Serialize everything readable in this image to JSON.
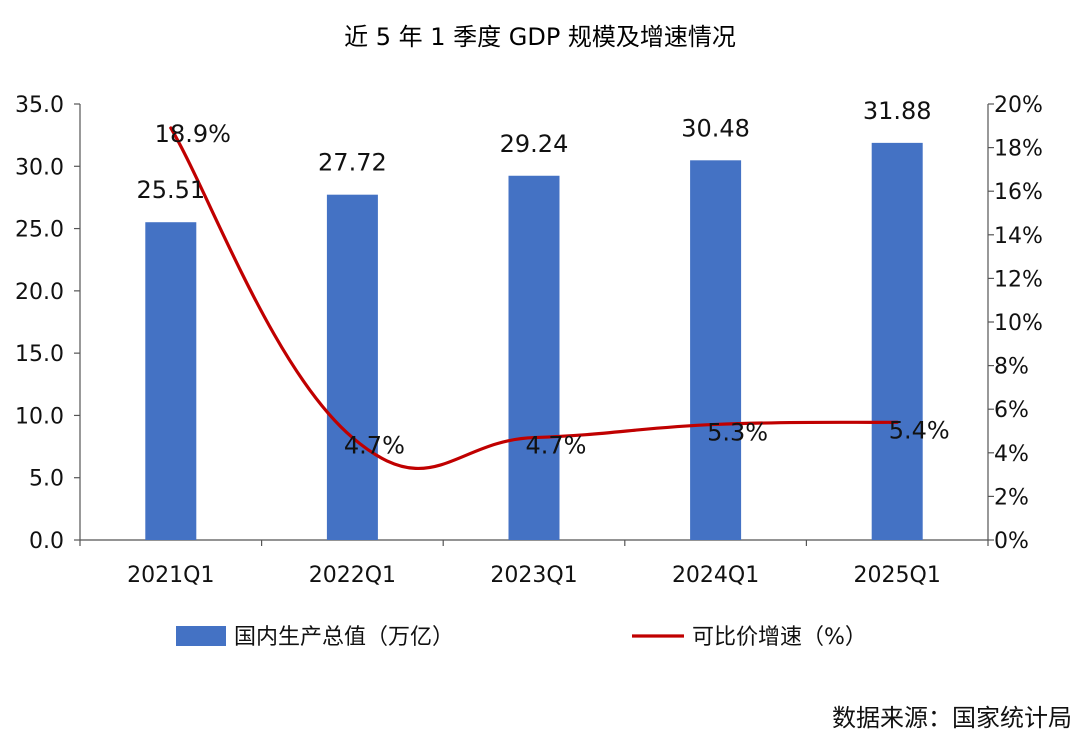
{
  "chart_data": {
    "type": "bar",
    "title": "近 5 年 1 季度 GDP 规模及增速情况",
    "categories": [
      "2021Q1",
      "2022Q1",
      "2023Q1",
      "2024Q1",
      "2025Q1"
    ],
    "series": [
      {
        "name": "国内生产总值（万亿）",
        "type": "bar",
        "axis": "left",
        "color": "#4472C4",
        "values": [
          25.51,
          27.72,
          29.24,
          30.48,
          31.88
        ],
        "labels": [
          "25.51",
          "27.72",
          "29.24",
          "30.48",
          "31.88"
        ]
      },
      {
        "name": "可比价增速（%）",
        "type": "line",
        "axis": "right",
        "color": "#C00000",
        "smooth": true,
        "values": [
          18.9,
          4.7,
          4.7,
          5.3,
          5.4
        ],
        "labels": [
          "18.9%",
          "4.7%",
          "4.7%",
          "5.3%",
          "5.4%"
        ]
      }
    ],
    "y_left": {
      "min": 0,
      "max": 35,
      "step": 5,
      "tick_labels": [
        "0.0",
        "5.0",
        "10.0",
        "15.0",
        "20.0",
        "25.0",
        "30.0",
        "35.0"
      ]
    },
    "y_right": {
      "min": 0,
      "max": 20,
      "step": 2,
      "tick_labels": [
        "0%",
        "2%",
        "4%",
        "6%",
        "8%",
        "10%",
        "12%",
        "14%",
        "16%",
        "18%",
        "20%"
      ]
    },
    "grid": false,
    "legend": "bottom",
    "source": "数据来源：国家统计局"
  }
}
